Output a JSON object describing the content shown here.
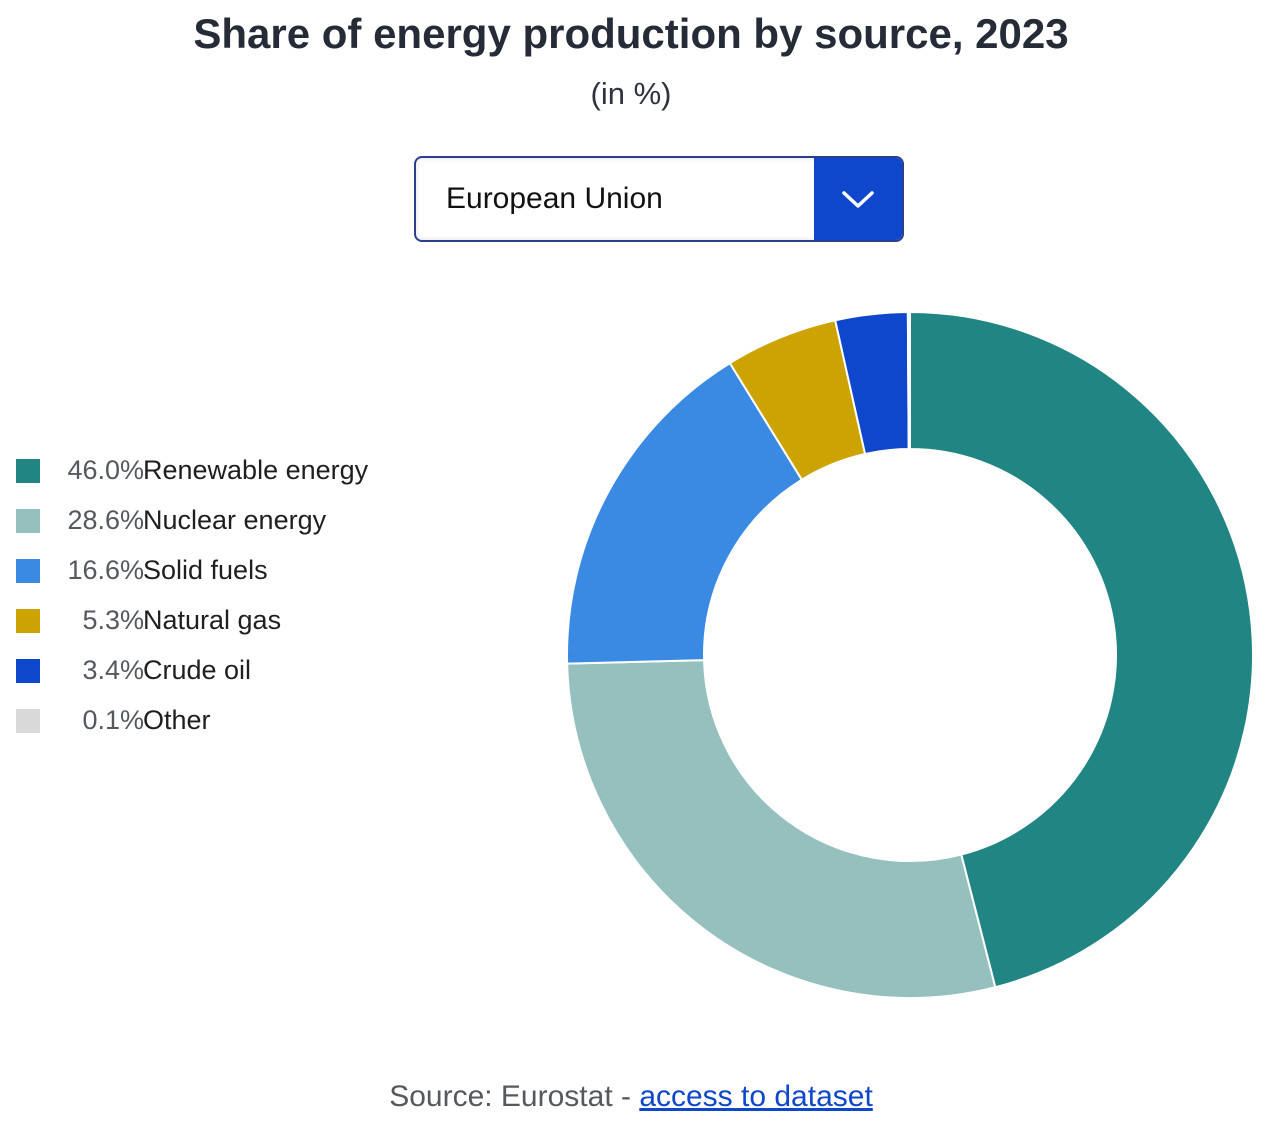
{
  "chart_data": {
    "type": "pie",
    "title": "Share of energy production by source, 2023",
    "subtitle": "(in %)",
    "legend_position": "left",
    "series": [
      {
        "name": "Renewable energy",
        "value": 46.0,
        "value_label": "46.0%",
        "color": "#218683"
      },
      {
        "name": "Nuclear energy",
        "value": 28.6,
        "value_label": "28.6%",
        "color": "#96c0be"
      },
      {
        "name": "Solid fuels",
        "value": 16.6,
        "value_label": "16.6%",
        "color": "#3a8ae4"
      },
      {
        "name": "Natural gas",
        "value": 5.3,
        "value_label": "5.3%",
        "color": "#cca300"
      },
      {
        "name": "Crude oil",
        "value": 3.4,
        "value_label": "3.4%",
        "color": "#0e47cb"
      },
      {
        "name": "Other",
        "value": 0.1,
        "value_label": "0.1%",
        "color": "#d9d9d9"
      }
    ]
  },
  "selector": {
    "value": "European Union",
    "icon": "chevron-down-icon",
    "accent": "#0e47cb"
  },
  "source": {
    "prefix": "Source: Eurostat - ",
    "link_text": "access to dataset"
  }
}
